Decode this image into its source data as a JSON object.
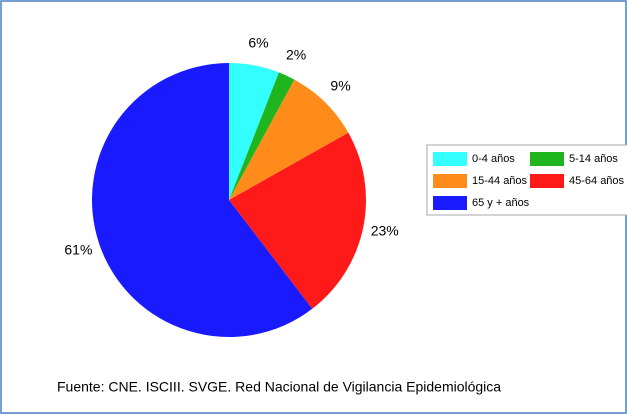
{
  "chart_data": {
    "type": "pie",
    "categories": [
      "0-4 años",
      "5-14 años",
      "15-44 años",
      "45-64 años",
      "65 y + años"
    ],
    "values": [
      6,
      2,
      9,
      23,
      61
    ],
    "value_labels": [
      "6%",
      "2%",
      "9%",
      "23%",
      "61%"
    ],
    "colors": [
      "#33ffff",
      "#1fb51f",
      "#ff8c1a",
      "#ff1a1a",
      "#1a1aff"
    ],
    "legend": "right",
    "source": "Fuente: CNE. ISCIII. SVGE. Red Nacional de Vigilancia Epidemiológica"
  }
}
